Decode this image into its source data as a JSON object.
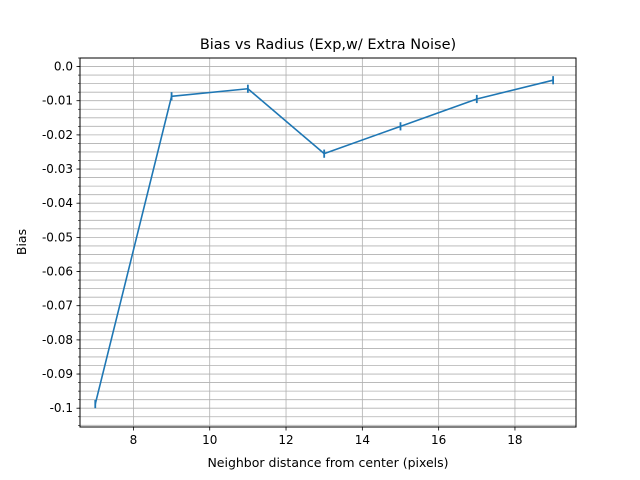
{
  "chart_data": {
    "type": "line",
    "title": "Bias vs Radius (Exp,w/ Extra Noise)",
    "xlabel": "Neighbor distance from center (pixels)",
    "ylabel": "Bias",
    "xlim": [
      6.6,
      19.6
    ],
    "ylim": [
      -0.1055,
      0.0025
    ],
    "x_ticks": [
      8,
      10,
      12,
      14,
      16,
      18
    ],
    "x_tick_labels": [
      "8",
      "10",
      "12",
      "14",
      "16",
      "18"
    ],
    "y_ticks": [
      0.0,
      -0.01,
      -0.02,
      -0.03,
      -0.04,
      -0.05,
      -0.06,
      -0.07,
      -0.08,
      -0.09,
      -0.1
    ],
    "y_tick_labels": [
      "0.0",
      "-0.01",
      "-0.02",
      "-0.03",
      "-0.04",
      "-0.05",
      "-0.06",
      "-0.07",
      "-0.08",
      "-0.09",
      "-0.1"
    ],
    "y_minor_step": 0.0025,
    "grid": true,
    "series": [
      {
        "x": [
          7,
          9,
          11,
          13,
          15,
          17,
          19
        ],
        "y": [
          -0.0988,
          -0.0087,
          -0.0065,
          -0.0255,
          -0.0175,
          -0.0095,
          -0.004
        ],
        "yerr": [
          0.0012,
          0.0012,
          0.0012,
          0.0012,
          0.0012,
          0.0012,
          0.0012
        ],
        "color": "#1f77b4"
      }
    ]
  }
}
